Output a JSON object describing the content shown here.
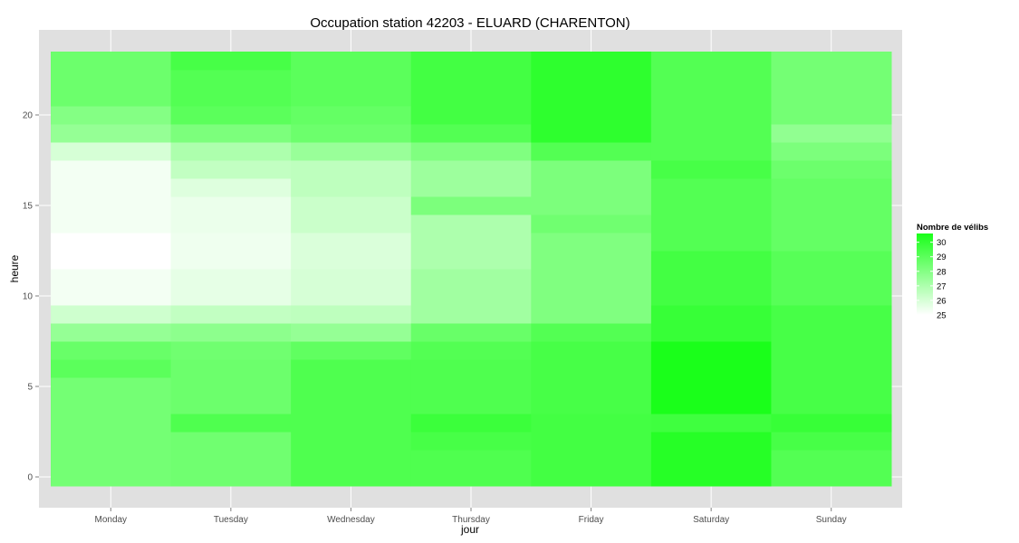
{
  "chart_data": {
    "type": "heatmap",
    "title": "Occupation station 42203 - ELUARD (CHARENTON)",
    "xlabel": "jour",
    "ylabel": "heure",
    "x": [
      "Monday",
      "Tuesday",
      "Wednesday",
      "Thursday",
      "Friday",
      "Saturday",
      "Sunday"
    ],
    "y": [
      0,
      1,
      2,
      3,
      4,
      5,
      6,
      7,
      8,
      9,
      10,
      11,
      12,
      13,
      14,
      15,
      16,
      17,
      18,
      19,
      20,
      21,
      22,
      23
    ],
    "ylim": [
      -0.5,
      23.5
    ],
    "y_ticks": [
      0,
      5,
      10,
      15,
      20
    ],
    "z_values_by_hour": [
      [
        28.4,
        28.5,
        29.3,
        29.3,
        29.6,
        30.3,
        29.2
      ],
      [
        28.4,
        28.5,
        29.3,
        29.3,
        29.6,
        30.3,
        29.2
      ],
      [
        28.4,
        28.5,
        29.3,
        29.5,
        29.6,
        30.3,
        29.5
      ],
      [
        28.4,
        29.3,
        29.3,
        29.8,
        29.6,
        29.7,
        29.9
      ],
      [
        28.4,
        28.6,
        29.3,
        29.3,
        29.5,
        30.6,
        29.5
      ],
      [
        28.4,
        28.6,
        29.3,
        29.3,
        29.5,
        30.6,
        29.5
      ],
      [
        29.0,
        28.6,
        29.3,
        29.3,
        29.5,
        30.6,
        29.5
      ],
      [
        28.7,
        28.5,
        28.9,
        29.2,
        29.5,
        30.6,
        29.5
      ],
      [
        27.6,
        27.8,
        27.6,
        28.7,
        29.2,
        29.9,
        29.5
      ],
      [
        26.2,
        26.5,
        26.6,
        27.3,
        28.1,
        29.9,
        29.5
      ],
      [
        25.3,
        25.6,
        26.0,
        27.3,
        28.1,
        29.6,
        29.1
      ],
      [
        25.3,
        25.6,
        26.0,
        27.3,
        28.1,
        29.6,
        29.1
      ],
      [
        25.0,
        25.4,
        25.9,
        27.0,
        28.1,
        29.6,
        29.1
      ],
      [
        25.0,
        25.4,
        25.9,
        27.0,
        28.1,
        29.2,
        28.8
      ],
      [
        25.3,
        25.5,
        26.3,
        27.0,
        28.5,
        29.2,
        28.8
      ],
      [
        25.3,
        25.5,
        26.3,
        28.2,
        28.2,
        29.2,
        28.8
      ],
      [
        25.3,
        25.8,
        26.6,
        27.4,
        28.2,
        29.2,
        28.8
      ],
      [
        25.3,
        26.5,
        26.6,
        27.4,
        28.2,
        29.5,
        28.6
      ],
      [
        26.0,
        27.0,
        27.5,
        28.1,
        29.2,
        29.2,
        28.2
      ],
      [
        27.6,
        28.2,
        28.6,
        29.2,
        30.1,
        29.2,
        27.7
      ],
      [
        28.0,
        29.0,
        28.8,
        29.6,
        30.1,
        29.2,
        28.4
      ],
      [
        28.6,
        29.2,
        29.0,
        29.6,
        30.1,
        29.2,
        28.4
      ],
      [
        28.6,
        29.2,
        29.0,
        29.6,
        30.1,
        29.2,
        28.4
      ],
      [
        28.6,
        29.5,
        29.0,
        29.6,
        30.1,
        29.2,
        28.4
      ]
    ],
    "legend": {
      "title": "Nombre de vélibs",
      "ticks": [
        30,
        29,
        28,
        27,
        26,
        25
      ],
      "min": 25,
      "max": 30.6,
      "low_color": "#ffffff",
      "high_color": "#1aff1a",
      "position": "right"
    },
    "panel_color": "#e0e0e0",
    "grid_color": "#ffffff",
    "grid": true
  }
}
